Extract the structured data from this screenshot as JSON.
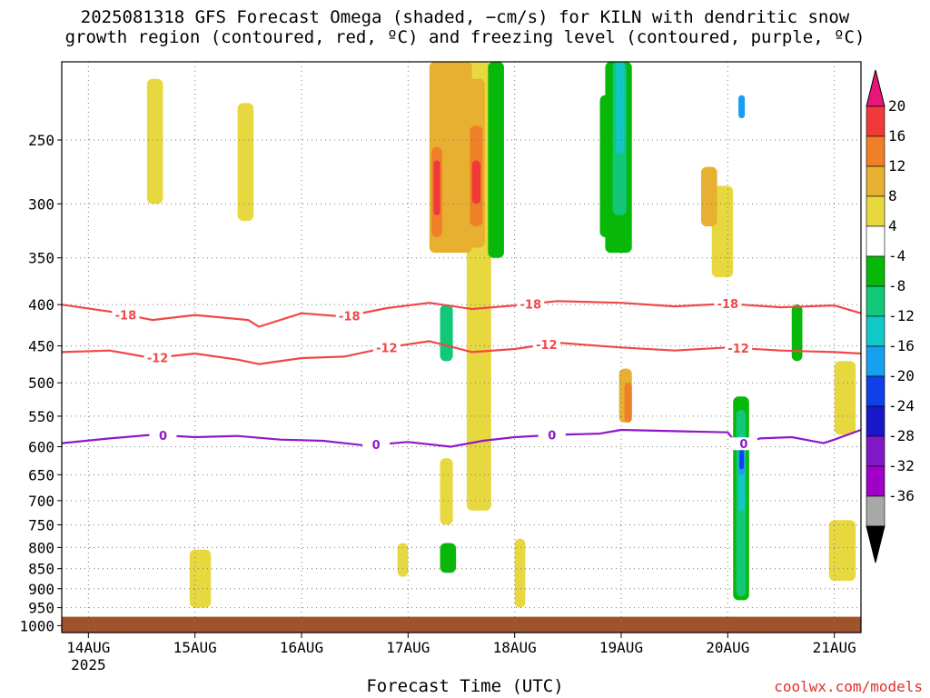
{
  "title_line1": "2025081318 GFS Forecast Omega (shaded, −cm/s) for KILN with dendritic snow",
  "title_line2": "growth region (contoured, red, ºC) and freezing level (contoured, purple, ºC)",
  "credit": "coolwx.com/models",
  "chart_data": {
    "type": "heatmap",
    "xlabel": "Forecast Time (UTC)",
    "ylabel": "",
    "x_ticks": [
      {
        "day": 0,
        "label": "14AUG",
        "sub": "2025"
      },
      {
        "day": 1,
        "label": "15AUG",
        "sub": ""
      },
      {
        "day": 2,
        "label": "16AUG",
        "sub": ""
      },
      {
        "day": 3,
        "label": "17AUG",
        "sub": ""
      },
      {
        "day": 4,
        "label": "18AUG",
        "sub": ""
      },
      {
        "day": 5,
        "label": "19AUG",
        "sub": ""
      },
      {
        "day": 6,
        "label": "20AUG",
        "sub": ""
      },
      {
        "day": 7,
        "label": "21AUG",
        "sub": ""
      }
    ],
    "xlim_days": [
      -0.25,
      7.25
    ],
    "y_ticks": [
      250,
      300,
      350,
      400,
      450,
      500,
      550,
      600,
      650,
      700,
      750,
      800,
      850,
      900,
      950,
      1000
    ],
    "ylim_hpa": [
      200,
      1020
    ],
    "y_scale": "log",
    "surface_hpa": 975,
    "colorbar": {
      "labels": [
        "20",
        "16",
        "12",
        "8",
        "4",
        "-4",
        "-8",
        "-12",
        "-16",
        "-20",
        "-24",
        "-28",
        "-32",
        "-36"
      ],
      "colors": [
        "#e8157a",
        "#f03a3a",
        "#f08028",
        "#e8b030",
        "#e8d840",
        "#ffffff",
        "#08b808",
        "#10c878",
        "#10c8c8",
        "#18a0f0",
        "#1040e8",
        "#1818c8",
        "#8018c8",
        "#a000c8",
        "#a8a8a8",
        "#000000"
      ]
    },
    "contours": [
      {
        "name": "-18",
        "color": "#f04848",
        "points": [
          [
            -0.25,
            400
          ],
          [
            0.2,
            408
          ],
          [
            0.6,
            418
          ],
          [
            1.0,
            412
          ],
          [
            1.5,
            418
          ],
          [
            1.6,
            426
          ],
          [
            2.0,
            410
          ],
          [
            2.4,
            414
          ],
          [
            2.8,
            404
          ],
          [
            3.2,
            398
          ],
          [
            3.6,
            405
          ],
          [
            4.0,
            401
          ],
          [
            4.4,
            396
          ],
          [
            5.0,
            398
          ],
          [
            5.5,
            402
          ],
          [
            6.0,
            399
          ],
          [
            6.5,
            403
          ],
          [
            7.0,
            401
          ],
          [
            7.25,
            410
          ]
        ],
        "labels": [
          [
            0.35,
            "-18"
          ],
          [
            2.45,
            "-18"
          ],
          [
            4.15,
            "-18"
          ],
          [
            6.0,
            "-18"
          ]
        ]
      },
      {
        "name": "-12",
        "color": "#f04848",
        "points": [
          [
            -0.25,
            458
          ],
          [
            0.2,
            456
          ],
          [
            0.6,
            466
          ],
          [
            1.0,
            460
          ],
          [
            1.4,
            468
          ],
          [
            1.6,
            474
          ],
          [
            2.0,
            466
          ],
          [
            2.4,
            464
          ],
          [
            2.8,
            452
          ],
          [
            3.2,
            444
          ],
          [
            3.6,
            458
          ],
          [
            4.0,
            454
          ],
          [
            4.4,
            446
          ],
          [
            5.0,
            452
          ],
          [
            5.5,
            456
          ],
          [
            6.0,
            452
          ],
          [
            6.5,
            456
          ],
          [
            7.0,
            458
          ],
          [
            7.25,
            460
          ]
        ],
        "labels": [
          [
            0.65,
            "-12"
          ],
          [
            2.8,
            "-12"
          ],
          [
            4.3,
            "-12"
          ],
          [
            6.1,
            "-12"
          ]
        ]
      },
      {
        "name": "0",
        "color": "#9018c8",
        "points": [
          [
            -0.25,
            594
          ],
          [
            0.2,
            586
          ],
          [
            0.6,
            580
          ],
          [
            1.0,
            584
          ],
          [
            1.4,
            582
          ],
          [
            1.8,
            588
          ],
          [
            2.2,
            590
          ],
          [
            2.6,
            598
          ],
          [
            3.0,
            592
          ],
          [
            3.4,
            600
          ],
          [
            3.7,
            590
          ],
          [
            4.0,
            584
          ],
          [
            4.4,
            580
          ],
          [
            4.8,
            578
          ],
          [
            5.0,
            572
          ],
          [
            5.5,
            574
          ],
          [
            6.0,
            576
          ],
          [
            6.1,
            598
          ],
          [
            6.3,
            586
          ],
          [
            6.6,
            584
          ],
          [
            6.9,
            594
          ],
          [
            7.0,
            588
          ],
          [
            7.25,
            572
          ]
        ],
        "labels": [
          [
            0.7,
            "0"
          ],
          [
            2.7,
            "0"
          ],
          [
            4.35,
            "0"
          ],
          [
            6.15,
            "0"
          ]
        ]
      }
    ],
    "omega_features": [
      {
        "v": 4,
        "t0": 3.55,
        "t1": 3.78,
        "p0": 200,
        "p1": 720
      },
      {
        "v": 4,
        "t0": 0.55,
        "t1": 0.7,
        "p0": 210,
        "p1": 300
      },
      {
        "v": 4,
        "t0": 1.4,
        "t1": 1.55,
        "p0": 225,
        "p1": 315
      },
      {
        "v": 4,
        "t0": 7.0,
        "t1": 7.2,
        "p0": 470,
        "p1": 580
      },
      {
        "v": 4,
        "t0": 5.85,
        "t1": 6.05,
        "p0": 285,
        "p1": 370
      },
      {
        "v": 4,
        "t0": 6.95,
        "t1": 7.2,
        "p0": 740,
        "p1": 880
      },
      {
        "v": 4,
        "t0": 0.95,
        "t1": 1.15,
        "p0": 805,
        "p1": 950
      },
      {
        "v": 4,
        "t0": 2.9,
        "t1": 3.0,
        "p0": 790,
        "p1": 870
      },
      {
        "v": 4,
        "t0": 3.3,
        "t1": 3.42,
        "p0": 620,
        "p1": 750
      },
      {
        "v": 4,
        "t0": 4.0,
        "t1": 4.1,
        "p0": 780,
        "p1": 950
      },
      {
        "v": 8,
        "t0": 3.2,
        "t1": 3.6,
        "p0": 200,
        "p1": 345
      },
      {
        "v": 8,
        "t0": 3.55,
        "t1": 3.72,
        "p0": 210,
        "p1": 340
      },
      {
        "v": 8,
        "t0": 4.98,
        "t1": 5.1,
        "p0": 480,
        "p1": 560
      },
      {
        "v": 8,
        "t0": 5.75,
        "t1": 5.9,
        "p0": 270,
        "p1": 320
      },
      {
        "v": 12,
        "t0": 3.22,
        "t1": 3.32,
        "p0": 255,
        "p1": 330
      },
      {
        "v": 12,
        "t0": 3.58,
        "t1": 3.7,
        "p0": 240,
        "p1": 320
      },
      {
        "v": 12,
        "t0": 5.03,
        "t1": 5.1,
        "p0": 500,
        "p1": 560
      },
      {
        "v": 16,
        "t0": 3.24,
        "t1": 3.3,
        "p0": 265,
        "p1": 310
      },
      {
        "v": 16,
        "t0": 3.6,
        "t1": 3.68,
        "p0": 265,
        "p1": 300
      },
      {
        "v": -4,
        "t0": 3.75,
        "t1": 3.9,
        "p0": 200,
        "p1": 350
      },
      {
        "v": -4,
        "t0": 4.85,
        "t1": 5.1,
        "p0": 200,
        "p1": 345
      },
      {
        "v": -4,
        "t0": 6.05,
        "t1": 6.2,
        "p0": 520,
        "p1": 930
      },
      {
        "v": -4,
        "t0": 3.3,
        "t1": 3.45,
        "p0": 790,
        "p1": 860
      },
      {
        "v": -4,
        "t0": 6.6,
        "t1": 6.7,
        "p0": 400,
        "p1": 470
      },
      {
        "v": -4,
        "t0": 4.8,
        "t1": 4.9,
        "p0": 220,
        "p1": 330
      },
      {
        "v": -8,
        "t0": 3.3,
        "t1": 3.42,
        "p0": 400,
        "p1": 470
      },
      {
        "v": -8,
        "t0": 4.92,
        "t1": 5.05,
        "p0": 200,
        "p1": 310
      },
      {
        "v": -8,
        "t0": 6.08,
        "t1": 6.17,
        "p0": 540,
        "p1": 920
      },
      {
        "v": -12,
        "t0": 4.95,
        "t1": 5.03,
        "p0": 200,
        "p1": 260
      },
      {
        "v": -12,
        "t0": 6.1,
        "t1": 6.16,
        "p0": 580,
        "p1": 720
      },
      {
        "v": -16,
        "t0": 6.1,
        "t1": 6.16,
        "p0": 600,
        "p1": 650
      },
      {
        "v": -20,
        "t0": 6.11,
        "t1": 6.15,
        "p0": 605,
        "p1": 640
      },
      {
        "v": -16,
        "t0": 6.1,
        "t1": 6.16,
        "p0": 220,
        "p1": 235
      }
    ]
  }
}
